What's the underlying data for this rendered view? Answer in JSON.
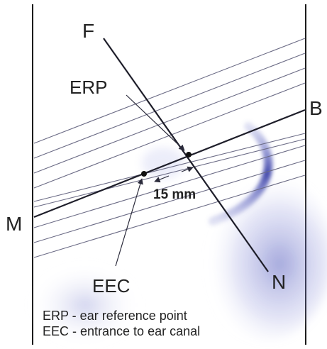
{
  "labels": {
    "F": "F",
    "B": "B",
    "M": "M",
    "N": "N",
    "erp": "ERP",
    "eec": "EEC",
    "distance": "15 mm"
  },
  "legend": {
    "line1": "ERP - ear reference point",
    "line2": "EEC - entrance to ear canal"
  },
  "colors": {
    "frame": "#1b1b1b",
    "main_line": "#1e1e2a",
    "thin_line": "#6c6c86",
    "arrow": "#2a2a3a",
    "shadow": "#5056b0",
    "text": "#222222"
  }
}
